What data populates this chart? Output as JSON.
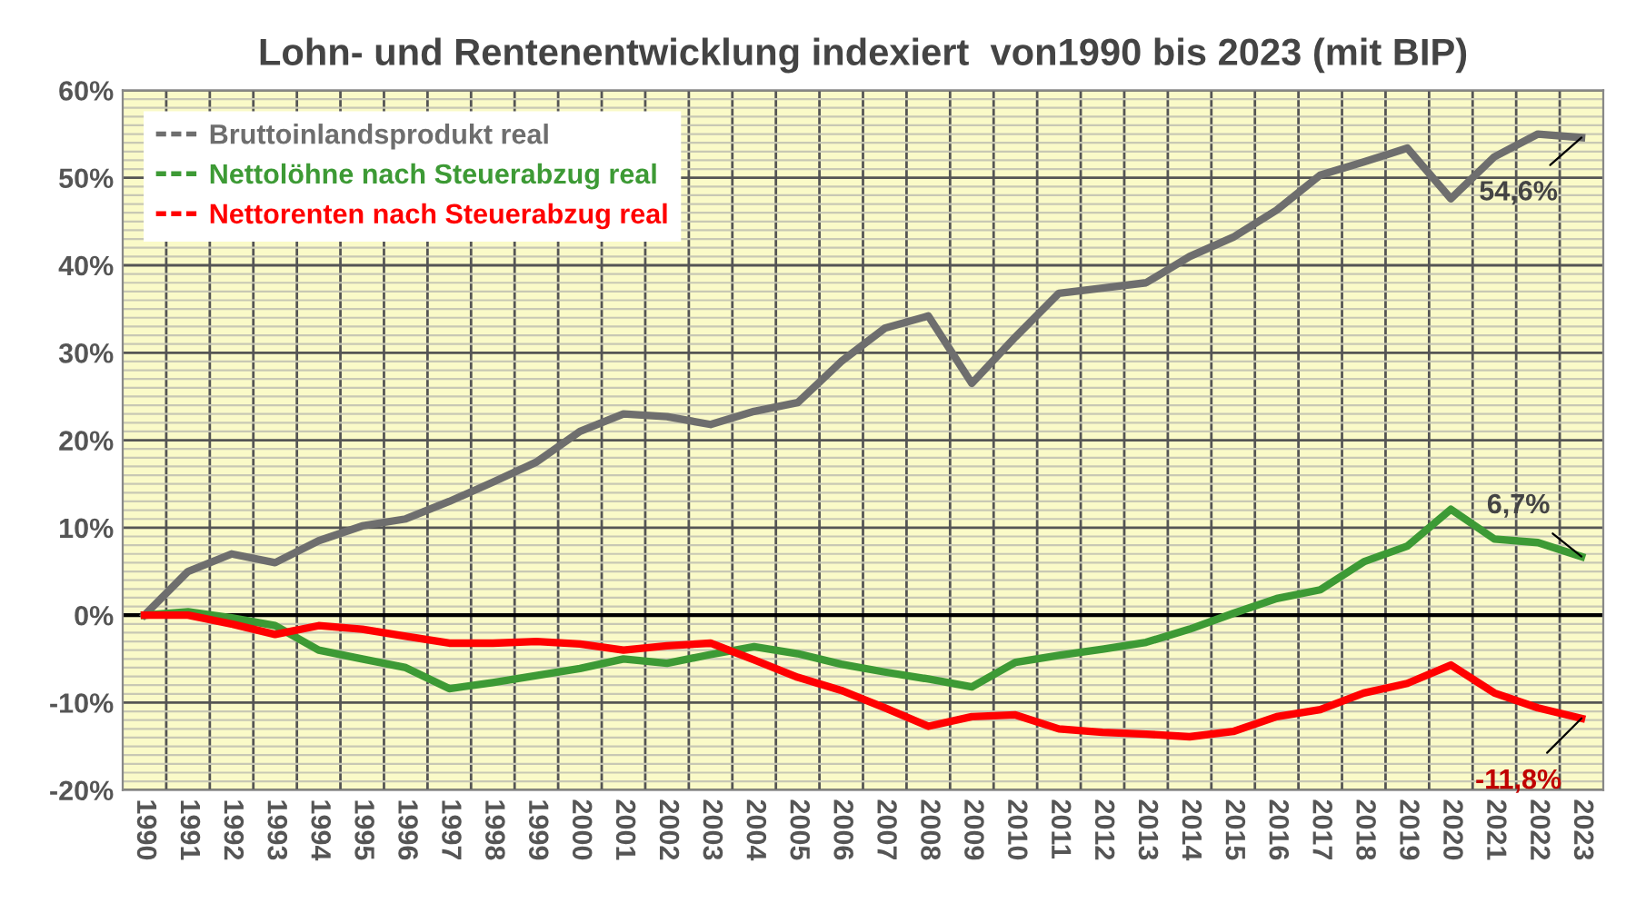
{
  "chart_data": {
    "type": "line",
    "title": "Lohn- und Rentenentwicklung indexiert  von1990 bis 2023 (mit BIP)",
    "categories": [
      "1990",
      "1991",
      "1992",
      "1993",
      "1994",
      "1995",
      "1996",
      "1997",
      "1998",
      "1999",
      "2000",
      "2001",
      "2002",
      "2003",
      "2004",
      "2005",
      "2006",
      "2007",
      "2008",
      "2009",
      "2010",
      "2011",
      "2012",
      "2013",
      "2014",
      "2015",
      "2016",
      "2017",
      "2018",
      "2019",
      "2020",
      "2021",
      "2022",
      "2023"
    ],
    "series": [
      {
        "name": "Bruttoinlandsprodukt real",
        "color": "#6e6e6e",
        "values": [
          0,
          5,
          7,
          6,
          8.5,
          10.2,
          11,
          13,
          15.2,
          17.5,
          21,
          23,
          22.7,
          21.8,
          23.3,
          24.3,
          29,
          32.8,
          34.2,
          26.5,
          31.8,
          36.8,
          37.4,
          38,
          41,
          43.2,
          46.3,
          50.3,
          51.8,
          53.4,
          47.6,
          52.4,
          55,
          54.6
        ]
      },
      {
        "name": "Nettolöhne nach Steuerabzug real",
        "color": "#3d9a35",
        "values": [
          0,
          0.4,
          -0.3,
          -1.2,
          -4,
          -5,
          -6,
          -8.4,
          -7.7,
          -6.9,
          -6.1,
          -5,
          -5.5,
          -4.5,
          -3.6,
          -4.4,
          -5.6,
          -6.5,
          -7.3,
          -8.2,
          -5.4,
          -4.6,
          -3.9,
          -3.1,
          -1.6,
          0.2,
          1.9,
          2.9,
          6.1,
          7.9,
          12.1,
          8.7,
          8.3,
          6.7
        ]
      },
      {
        "name": "Nettorenten nach Steuerabzug real",
        "color": "#ff0000",
        "values": [
          0,
          0,
          -1,
          -2.2,
          -1.2,
          -1.6,
          -2.4,
          -3.2,
          -3.2,
          -3,
          -3.3,
          -4,
          -3.5,
          -3.2,
          -5.1,
          -7.1,
          -8.6,
          -10.6,
          -12.7,
          -11.6,
          -11.4,
          -13,
          -13.4,
          -13.6,
          -13.9,
          -13.3,
          -11.6,
          -10.8,
          -8.9,
          -7.8,
          -5.7,
          -8.9,
          -10.6,
          -11.8
        ]
      }
    ],
    "ylim": [
      -20,
      60
    ],
    "yticks": [
      {
        "value": -20,
        "label": "-20%"
      },
      {
        "value": -10,
        "label": "-10%"
      },
      {
        "value": 0,
        "label": "0%"
      },
      {
        "value": 10,
        "label": "10%"
      },
      {
        "value": 20,
        "label": "20%"
      },
      {
        "value": 30,
        "label": "30%"
      },
      {
        "value": 40,
        "label": "40%"
      },
      {
        "value": 50,
        "label": "50%"
      },
      {
        "value": 60,
        "label": "60%"
      }
    ],
    "grid": true,
    "legend": "top left",
    "marker": "none",
    "line_style": "solid",
    "annotations": [
      {
        "text": "54,6%",
        "x": "2023",
        "y": 54.6
      },
      {
        "text": "6,7%",
        "x": "2023",
        "y": 6.7
      },
      {
        "text": "-11,8%",
        "x": "2023",
        "y": -11.8
      }
    ]
  }
}
